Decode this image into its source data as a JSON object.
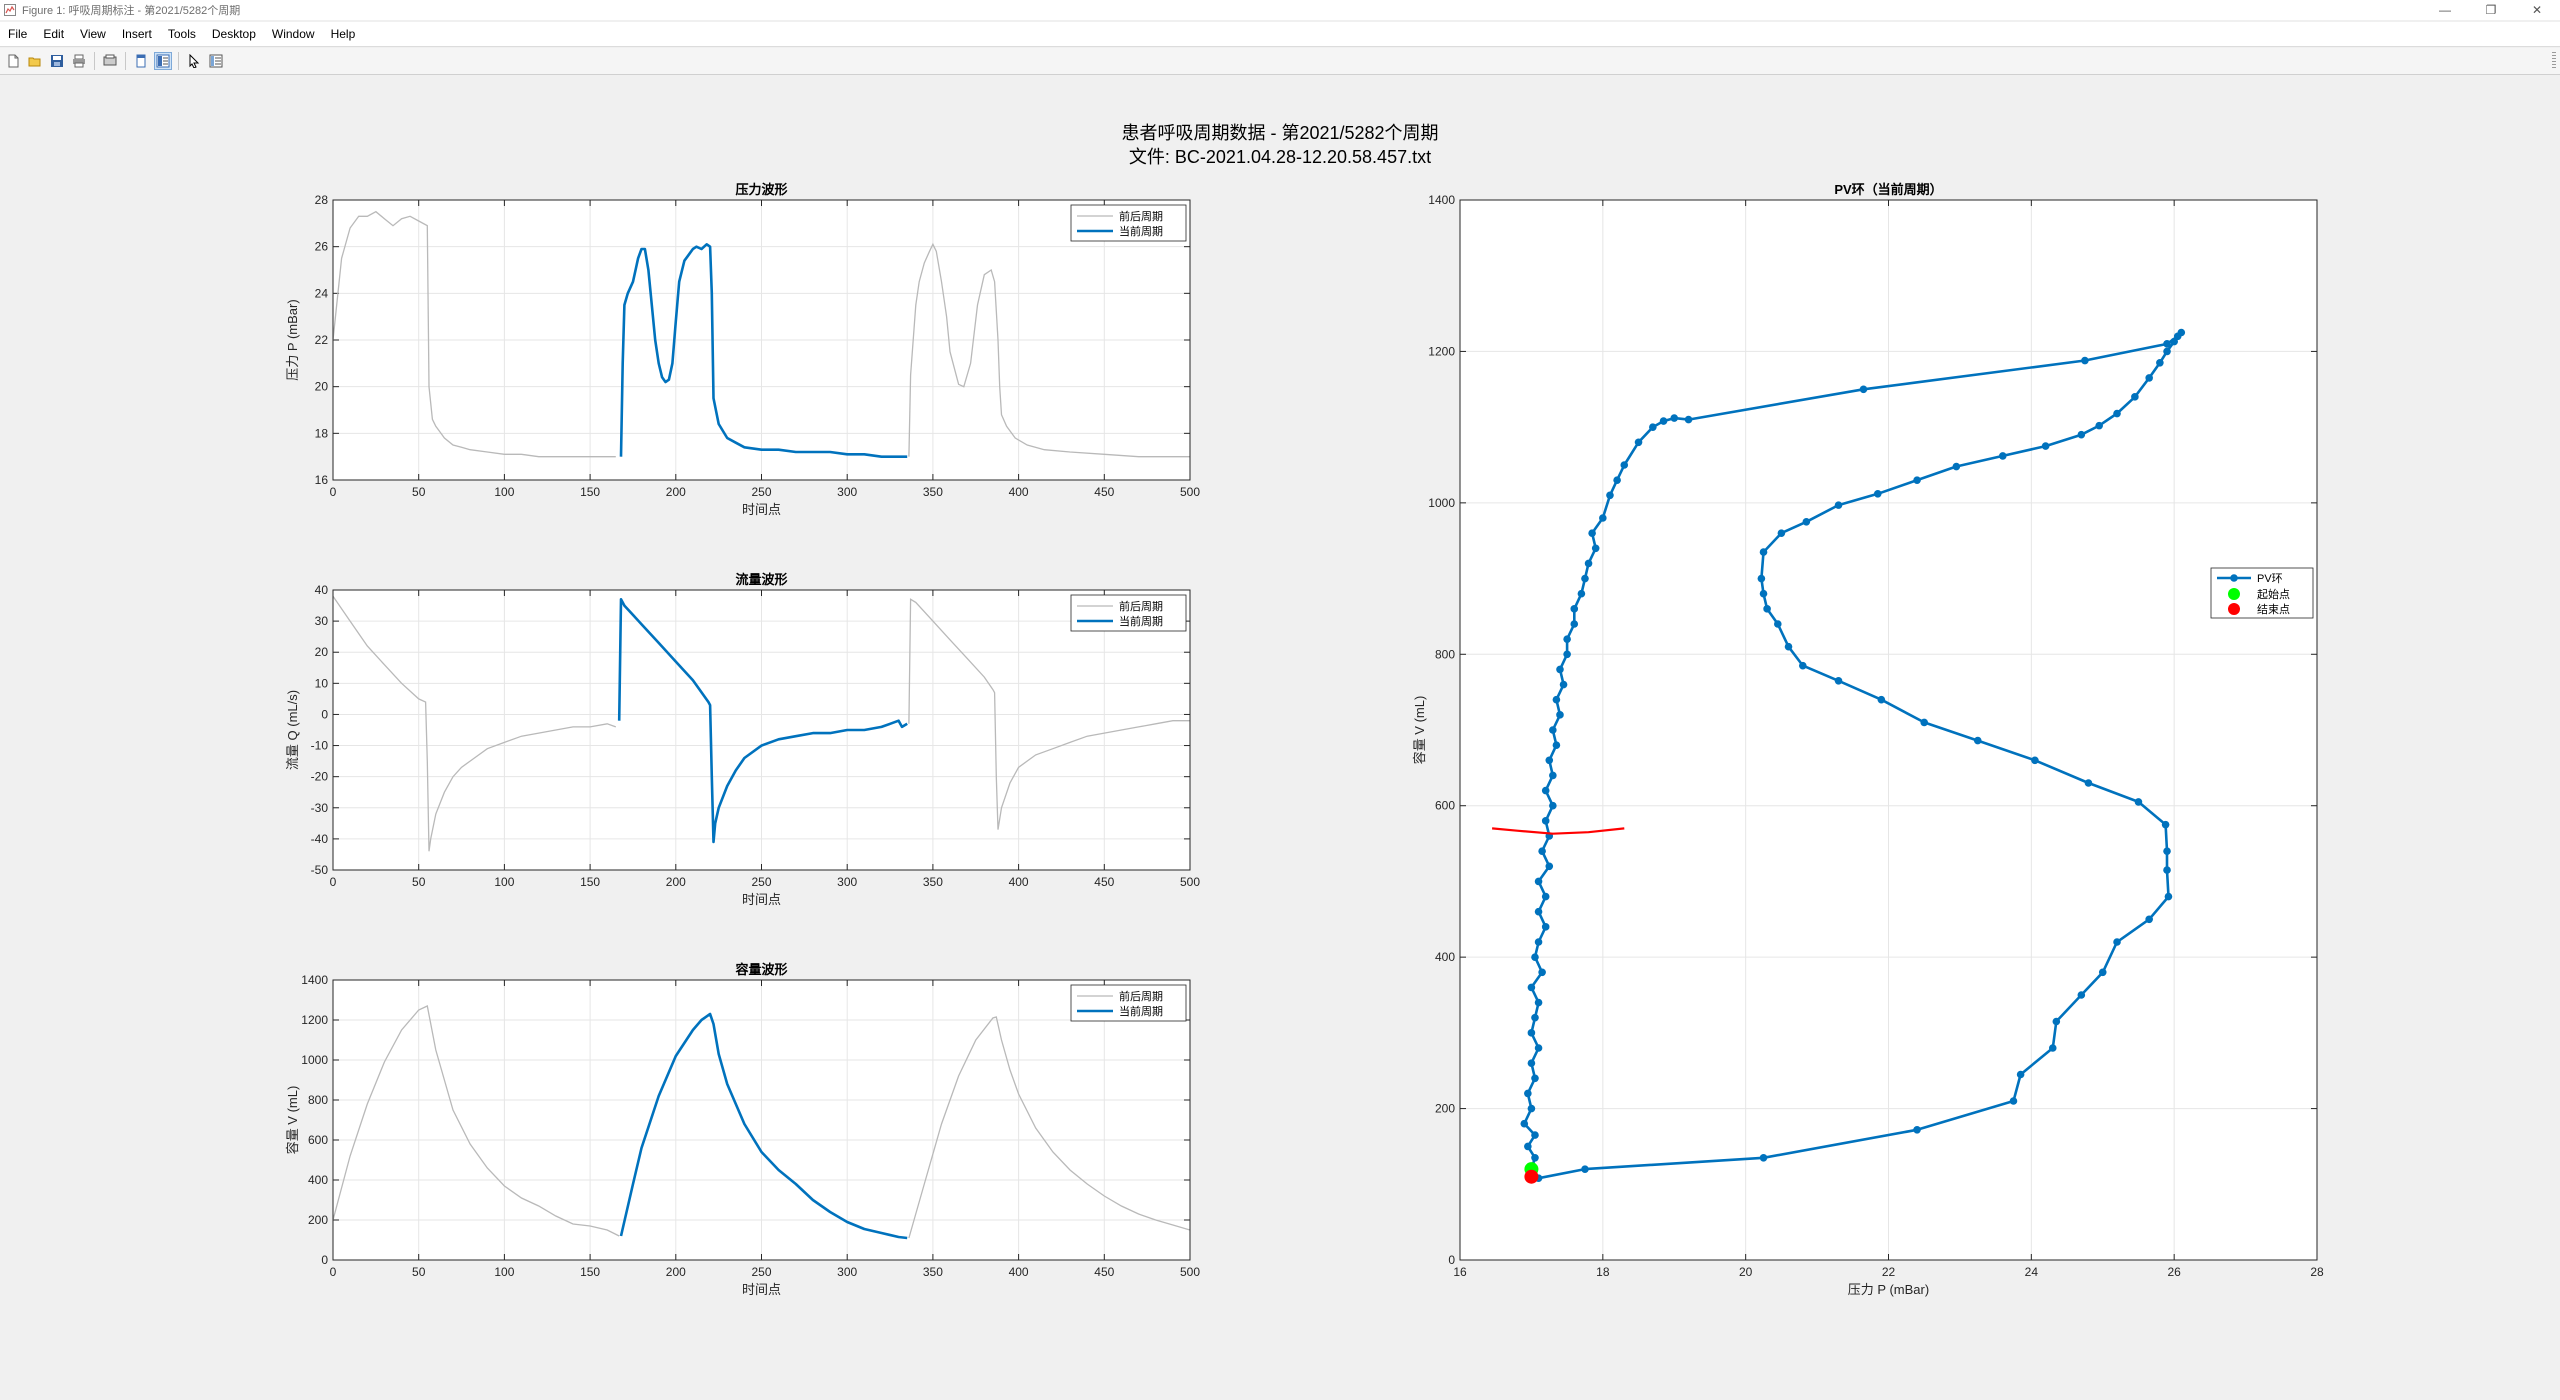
{
  "window": {
    "title": "Figure 1: 呼吸周期标注 - 第2021/5282个周期",
    "controls": [
      "—",
      "❐",
      "✕"
    ]
  },
  "menu": [
    "File",
    "Edit",
    "View",
    "Insert",
    "Tools",
    "Desktop",
    "Window",
    "Help"
  ],
  "toolbar": {
    "icons": [
      "new-figure-icon",
      "open-file-icon",
      "save-icon",
      "print-icon",
      "print-preview-icon",
      "dock-toggle-icon",
      "property-editor-icon",
      "select-arrow-icon",
      "plot-browser-icon"
    ],
    "selected": "property-editor-icon"
  },
  "figure": {
    "title_line1": "患者呼吸周期数据 - 第2021/5282个周期",
    "title_line2": "文件: BC-2021.04.28-12.20.58.457.txt"
  },
  "colors": {
    "current": "#0072BD",
    "context": "#b9b9b9",
    "red": "#ff0000",
    "green": "#00ff00",
    "grid": "#e6e6e6"
  },
  "chart_data": [
    {
      "type": "line",
      "title": "压力波形",
      "xlabel": "时间点",
      "ylabel": "压力 P (mBar)",
      "xlim": [
        0,
        500
      ],
      "ylim": [
        16,
        28
      ],
      "xticks": [
        0,
        50,
        100,
        150,
        200,
        250,
        300,
        350,
        400,
        450,
        500
      ],
      "yticks": [
        16,
        18,
        20,
        22,
        24,
        26,
        28
      ],
      "grid": true,
      "legend_position": "top-right",
      "series": [
        {
          "name": "前后周期",
          "role": "context",
          "x": [
            0,
            5,
            10,
            15,
            20,
            25,
            30,
            35,
            40,
            45,
            50,
            55,
            56,
            58,
            60,
            62,
            65,
            70,
            75,
            80,
            90,
            100,
            110,
            120,
            130,
            140,
            150,
            160,
            165
          ],
          "y": [
            22,
            25.5,
            26.8,
            27.3,
            27.3,
            27.5,
            27.2,
            26.9,
            27.2,
            27.3,
            27.1,
            26.9,
            20,
            18.6,
            18.3,
            18.1,
            17.8,
            17.5,
            17.4,
            17.3,
            17.2,
            17.1,
            17.1,
            17.0,
            17.0,
            17.0,
            17.0,
            17.0,
            17.0
          ]
        },
        {
          "name": "当前周期",
          "role": "current",
          "x": [
            168,
            169,
            170,
            172,
            175,
            178,
            180,
            182,
            184,
            186,
            188,
            190,
            192,
            194,
            196,
            198,
            200,
            202,
            205,
            208,
            210,
            212,
            215,
            218,
            220,
            221,
            222,
            225,
            230,
            235,
            240,
            250,
            260,
            270,
            280,
            290,
            300,
            310,
            320,
            330,
            335
          ],
          "y": [
            17.0,
            21,
            23.5,
            24.0,
            24.5,
            25.5,
            25.9,
            25.9,
            25.0,
            23.5,
            22.0,
            21.0,
            20.4,
            20.2,
            20.3,
            21.0,
            22.8,
            24.5,
            25.4,
            25.7,
            25.9,
            26.0,
            25.9,
            26.1,
            26.0,
            24,
            19.5,
            18.4,
            17.8,
            17.6,
            17.4,
            17.3,
            17.3,
            17.2,
            17.2,
            17.2,
            17.1,
            17.1,
            17.0,
            17.0,
            17.0
          ]
        },
        {
          "name": "前后周期",
          "role": "context",
          "x": [
            336,
            337,
            340,
            342,
            345,
            348,
            350,
            352,
            355,
            358,
            360,
            365,
            368,
            372,
            376,
            380,
            384,
            386,
            388,
            389,
            390,
            393,
            398,
            405,
            415,
            430,
            450,
            470,
            490,
            500
          ],
          "y": [
            17.0,
            20.5,
            23.5,
            24.5,
            25.3,
            25.8,
            26.1,
            25.8,
            24.5,
            23.0,
            21.5,
            20.1,
            20.0,
            21.0,
            23.5,
            24.8,
            25.0,
            24.5,
            22,
            20,
            18.8,
            18.3,
            17.8,
            17.5,
            17.3,
            17.2,
            17.1,
            17.0,
            17.0,
            17.0
          ]
        }
      ]
    },
    {
      "type": "line",
      "title": "流量波形",
      "xlabel": "时间点",
      "ylabel": "流量 Q (mL/s)",
      "xlim": [
        0,
        500
      ],
      "ylim": [
        -50,
        40
      ],
      "xticks": [
        0,
        50,
        100,
        150,
        200,
        250,
        300,
        350,
        400,
        450,
        500
      ],
      "yticks": [
        -50,
        -40,
        -30,
        -20,
        -10,
        0,
        10,
        20,
        30,
        40
      ],
      "grid": true,
      "legend_position": "top-right",
      "series": [
        {
          "name": "前后周期",
          "role": "context",
          "x": [
            0,
            10,
            20,
            30,
            40,
            50,
            54,
            55,
            56,
            57,
            60,
            65,
            70,
            75,
            80,
            90,
            100,
            110,
            120,
            130,
            140,
            150,
            160,
            165
          ],
          "y": [
            38,
            30,
            22,
            16,
            10,
            5,
            4,
            -15,
            -44,
            -40,
            -32,
            -25,
            -20,
            -17,
            -15,
            -11,
            -9,
            -7,
            -6,
            -5,
            -4,
            -4,
            -3,
            -4
          ]
        },
        {
          "name": "当前周期",
          "role": "current",
          "x": [
            167,
            168,
            170,
            180,
            190,
            200,
            210,
            219,
            220,
            221,
            222,
            223,
            225,
            230,
            235,
            240,
            250,
            260,
            270,
            280,
            290,
            300,
            310,
            320,
            325,
            330,
            332,
            335
          ],
          "y": [
            -2,
            37,
            35,
            29,
            23,
            17,
            11,
            4,
            3,
            -20,
            -41,
            -35,
            -30,
            -23,
            -18,
            -14,
            -10,
            -8,
            -7,
            -6,
            -6,
            -5,
            -5,
            -4,
            -3,
            -2,
            -4,
            -3
          ]
        },
        {
          "name": "前后周期",
          "role": "context",
          "x": [
            336,
            337,
            340,
            350,
            360,
            370,
            380,
            385,
            386,
            387,
            388,
            390,
            395,
            400,
            410,
            420,
            430,
            440,
            450,
            460,
            470,
            480,
            490,
            500
          ],
          "y": [
            -3,
            37,
            36,
            30,
            24,
            18,
            12,
            8,
            7,
            -20,
            -37,
            -30,
            -22,
            -17,
            -13,
            -11,
            -9,
            -7,
            -6,
            -5,
            -4,
            -3,
            -2,
            -2
          ]
        }
      ]
    },
    {
      "type": "line",
      "title": "容量波形",
      "xlabel": "时间点",
      "ylabel": "容量 V (mL)",
      "xlim": [
        0,
        500
      ],
      "ylim": [
        0,
        1400
      ],
      "xticks": [
        0,
        50,
        100,
        150,
        200,
        250,
        300,
        350,
        400,
        450,
        500
      ],
      "yticks": [
        0,
        200,
        400,
        600,
        800,
        1000,
        1200,
        1400
      ],
      "grid": true,
      "legend_position": "top-right",
      "series": [
        {
          "name": "前后周期",
          "role": "context",
          "x": [
            0,
            10,
            20,
            30,
            40,
            50,
            55,
            60,
            70,
            80,
            90,
            100,
            110,
            120,
            130,
            140,
            150,
            160,
            167
          ],
          "y": [
            200,
            520,
            780,
            990,
            1150,
            1250,
            1270,
            1050,
            750,
            580,
            460,
            370,
            310,
            270,
            220,
            180,
            170,
            150,
            120
          ]
        },
        {
          "name": "当前周期",
          "role": "current",
          "x": [
            168,
            175,
            180,
            190,
            200,
            210,
            215,
            220,
            222,
            225,
            230,
            240,
            250,
            260,
            270,
            280,
            290,
            300,
            310,
            320,
            330,
            335
          ],
          "y": [
            120,
            380,
            560,
            820,
            1020,
            1150,
            1200,
            1230,
            1180,
            1030,
            880,
            680,
            540,
            450,
            380,
            300,
            240,
            190,
            155,
            135,
            115,
            110
          ]
        },
        {
          "name": "前后周期",
          "role": "context",
          "x": [
            336,
            345,
            355,
            365,
            375,
            385,
            387,
            390,
            395,
            400,
            410,
            420,
            430,
            440,
            450,
            460,
            470,
            480,
            490,
            500
          ],
          "y": [
            110,
            380,
            680,
            920,
            1100,
            1210,
            1215,
            1100,
            950,
            830,
            660,
            540,
            450,
            380,
            320,
            270,
            230,
            200,
            175,
            150
          ]
        }
      ]
    },
    {
      "type": "line",
      "title": "PV环（当前周期）",
      "xlabel": "压力 P (mBar)",
      "ylabel": "容量 V (mL)",
      "xlim": [
        16,
        28
      ],
      "ylim": [
        0,
        1400
      ],
      "xticks": [
        16,
        18,
        20,
        22,
        24,
        26,
        28
      ],
      "yticks": [
        0,
        200,
        400,
        600,
        800,
        1000,
        1200,
        1400
      ],
      "grid": true,
      "legend_position": "right",
      "legend": [
        "PV环",
        "起始点",
        "结束点"
      ],
      "series": [
        {
          "name": "PV环",
          "role": "current",
          "markers": true,
          "x": [
            17.0,
            17.05,
            16.95,
            17.05,
            16.9,
            17.0,
            16.95,
            17.05,
            17.0,
            17.1,
            17.0,
            17.05,
            17.1,
            17.0,
            17.15,
            17.05,
            17.1,
            17.2,
            17.1,
            17.2,
            17.1,
            17.25,
            17.15,
            17.25,
            17.2,
            17.3,
            17.2,
            17.3,
            17.25,
            17.35,
            17.3,
            17.4,
            17.35,
            17.45,
            17.4,
            17.5,
            17.5,
            17.6,
            17.6,
            17.7,
            17.75,
            17.8,
            17.9,
            17.85,
            18.0,
            18.1,
            18.2,
            18.3,
            18.5,
            18.7,
            18.85,
            19.0,
            19.2,
            21.65,
            24.75,
            25.9,
            26.05,
            26.1,
            26.0,
            25.9,
            25.8,
            25.65,
            25.45,
            25.2,
            24.95,
            24.7,
            24.2,
            23.6,
            22.95,
            22.4,
            21.85,
            21.3,
            20.85,
            20.5,
            20.25,
            20.22,
            20.25,
            20.3,
            20.45,
            20.6,
            20.8,
            21.3,
            21.9,
            22.5,
            23.25,
            24.05,
            24.8,
            25.5,
            25.88,
            25.9,
            25.9,
            25.92,
            25.65,
            25.2,
            25.0,
            24.7,
            24.35,
            24.3,
            23.85,
            23.75,
            22.4,
            20.25,
            17.75,
            17.1,
            17.0
          ],
          "y": [
            120,
            135,
            150,
            165,
            180,
            200,
            220,
            240,
            260,
            280,
            300,
            320,
            340,
            360,
            380,
            400,
            420,
            440,
            460,
            480,
            500,
            520,
            540,
            560,
            580,
            600,
            620,
            640,
            660,
            680,
            700,
            720,
            740,
            760,
            780,
            800,
            820,
            840,
            860,
            880,
            900,
            920,
            940,
            960,
            980,
            1010,
            1030,
            1050,
            1080,
            1100,
            1108,
            1112,
            1110,
            1150,
            1188,
            1210,
            1220,
            1225,
            1213,
            1200,
            1185,
            1165,
            1140,
            1118,
            1102,
            1090,
            1075,
            1062,
            1048,
            1030,
            1012,
            997,
            975,
            960,
            935,
            900,
            880,
            860,
            840,
            810,
            785,
            765,
            740,
            710,
            686,
            660,
            630,
            605,
            575,
            540,
            515,
            480,
            450,
            420,
            380,
            350,
            315,
            280,
            245,
            210,
            172,
            135,
            120,
            108,
            110
          ]
        },
        {
          "name": "起始点",
          "role": "start-marker",
          "x": [
            17.0
          ],
          "y": [
            120
          ]
        },
        {
          "name": "结束点",
          "role": "end-marker",
          "x": [
            17.0
          ],
          "y": [
            110
          ]
        },
        {
          "name": "",
          "role": "red-line",
          "x": [
            16.45,
            16.8,
            17.3,
            17.8,
            18.3
          ],
          "y": [
            570,
            567,
            563,
            565,
            570
          ]
        }
      ]
    }
  ]
}
